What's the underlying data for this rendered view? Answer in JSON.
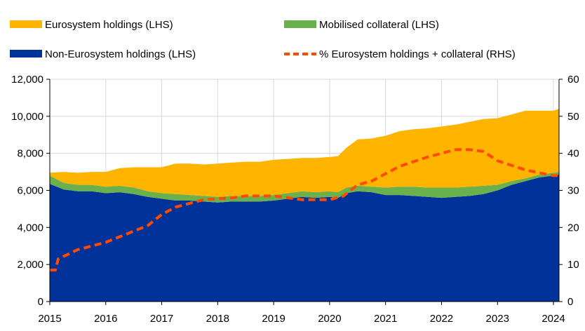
{
  "chart_data": {
    "type": "area",
    "x": [
      2015.0,
      2015.25,
      2015.5,
      2015.75,
      2016.0,
      2016.25,
      2016.5,
      2016.75,
      2017.0,
      2017.25,
      2017.5,
      2017.75,
      2018.0,
      2018.25,
      2018.5,
      2018.75,
      2019.0,
      2019.25,
      2019.5,
      2019.75,
      2020.0,
      2020.15,
      2020.3,
      2020.5,
      2020.75,
      2021.0,
      2021.25,
      2021.5,
      2021.75,
      2022.0,
      2022.25,
      2022.5,
      2022.75,
      2023.0,
      2023.25,
      2023.5,
      2023.75,
      2024.0,
      2024.1
    ],
    "series": [
      {
        "name": "Non-Eurosystem holdings (LHS)",
        "color": "#003299",
        "values": [
          6350,
          6050,
          5950,
          5950,
          5850,
          5900,
          5800,
          5650,
          5550,
          5450,
          5450,
          5400,
          5350,
          5400,
          5400,
          5400,
          5450,
          5550,
          5650,
          5600,
          5650,
          5600,
          5850,
          5950,
          5900,
          5750,
          5750,
          5700,
          5650,
          5600,
          5650,
          5700,
          5800,
          6000,
          6300,
          6500,
          6700,
          6800,
          6850
        ]
      },
      {
        "name": "Mobilised collateral (LHS)",
        "color": "#6AB04C",
        "values": [
          450,
          350,
          350,
          350,
          350,
          350,
          350,
          300,
          300,
          350,
          300,
          300,
          300,
          300,
          300,
          300,
          300,
          300,
          300,
          300,
          300,
          300,
          300,
          300,
          300,
          400,
          450,
          500,
          500,
          550,
          500,
          500,
          450,
          300,
          200,
          150,
          150,
          150,
          150
        ]
      },
      {
        "name": "Eurosystem holdings (LHS)",
        "color": "#FFB400",
        "values": [
          150,
          600,
          650,
          700,
          800,
          950,
          1100,
          1300,
          1400,
          1650,
          1700,
          1700,
          1800,
          1800,
          1850,
          1850,
          1900,
          1850,
          1800,
          1850,
          1850,
          1950,
          2150,
          2500,
          2600,
          2800,
          3000,
          3100,
          3200,
          3300,
          3400,
          3500,
          3600,
          3600,
          3600,
          3650,
          3450,
          3350,
          3400
        ]
      }
    ],
    "rhs_series": {
      "name": "% Eurosystem holdings + collateral (RHS)",
      "color": "#FF4B00",
      "x": [
        2015.0,
        2015.1,
        2015.15,
        2015.5,
        2016.0,
        2016.5,
        2016.75,
        2017.0,
        2017.25,
        2017.75,
        2018.25,
        2018.5,
        2019.0,
        2019.5,
        2020.0,
        2020.25,
        2020.5,
        2020.75,
        2021.0,
        2021.25,
        2021.75,
        2022.0,
        2022.25,
        2022.5,
        2022.75,
        2023.0,
        2023.5,
        2024.0,
        2024.1
      ],
      "values": [
        8.5,
        8.5,
        11.5,
        14,
        16,
        19,
        20.5,
        23.5,
        25.5,
        27.5,
        28,
        28.5,
        28.5,
        27.5,
        27.5,
        28.5,
        31.5,
        32.5,
        34.5,
        36.5,
        39,
        40,
        41,
        41,
        40.5,
        38,
        35.5,
        34,
        34
      ]
    },
    "xlim": [
      2015,
      2024.1
    ],
    "ylim_left": [
      0,
      12000
    ],
    "ylim_right": [
      0,
      60
    ],
    "xticks": [
      2015,
      2016,
      2017,
      2018,
      2019,
      2020,
      2021,
      2022,
      2023,
      2024
    ],
    "xtick_labels": [
      "2015",
      "2016",
      "2017",
      "2018",
      "2019",
      "2020",
      "2021",
      "2022",
      "2023",
      "2024"
    ],
    "yticks_left": [
      0,
      2000,
      4000,
      6000,
      8000,
      10000,
      12000
    ],
    "ytick_labels_left": [
      "0",
      "2,000",
      "4,000",
      "6,000",
      "8,000",
      "10,000",
      "12,000"
    ],
    "yticks_right": [
      0,
      10,
      20,
      30,
      40,
      50,
      60
    ],
    "ytick_labels_right": [
      "0",
      "10",
      "20",
      "30",
      "40",
      "50",
      "60"
    ],
    "grid": true,
    "legend": [
      {
        "label": "Eurosystem holdings (LHS)",
        "color": "#FFB400",
        "kind": "patch"
      },
      {
        "label": "Mobilised collateral (LHS)",
        "color": "#6AB04C",
        "kind": "patch"
      },
      {
        "label": "Non-Eurosystem holdings (LHS)",
        "color": "#003299",
        "kind": "patch"
      },
      {
        "label": "% Eurosystem holdings + collateral (RHS)",
        "color": "#FF4B00",
        "kind": "dashed-line"
      }
    ],
    "legend_position": "top"
  }
}
